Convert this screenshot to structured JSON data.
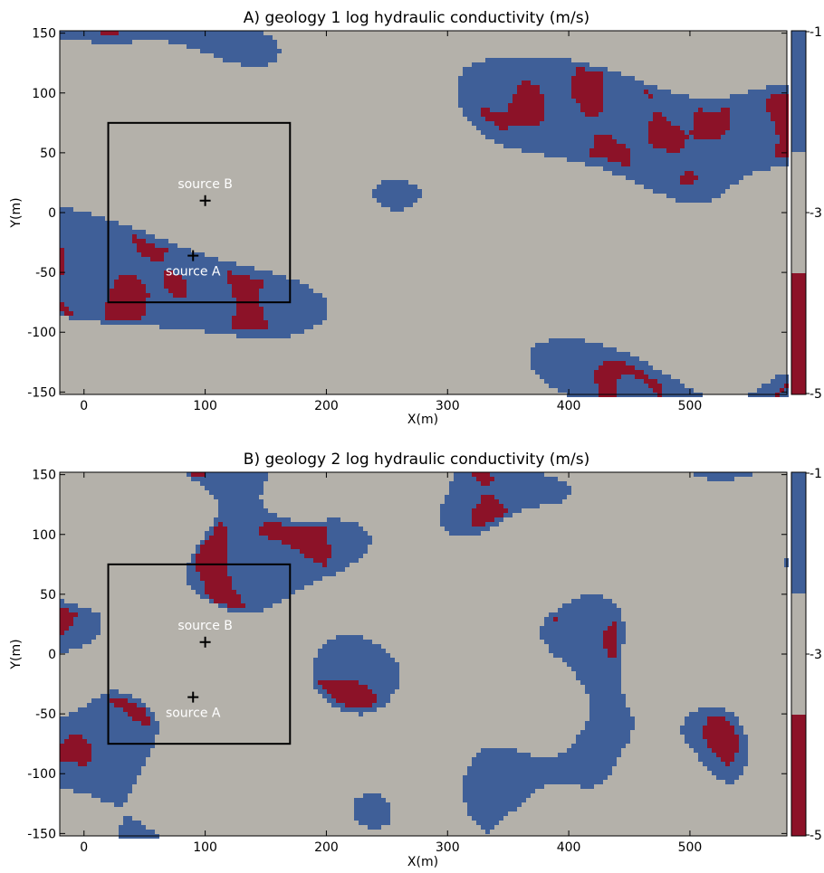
{
  "chart_data": [
    {
      "type": "heatmap",
      "title": "A) geology 1 log hydraulic conductivity (m/s)",
      "xlabel": "X(m)",
      "ylabel": "Y(m)",
      "xlim": [
        -20,
        580
      ],
      "ylim": [
        -152,
        152
      ],
      "xticks": [
        0,
        100,
        200,
        300,
        400,
        500
      ],
      "yticks": [
        -150,
        -100,
        -50,
        0,
        50,
        100,
        150
      ],
      "colorbar": {
        "ticks": [
          -1,
          -3,
          -5
        ],
        "tick_labels": [
          "-1",
          "-3",
          "-5"
        ],
        "levels": [
          {
            "value": -1,
            "color": "#3f5f98"
          },
          {
            "value": -3,
            "color": "#b4b1aa"
          },
          {
            "value": -5,
            "color": "#8c1228"
          }
        ]
      },
      "box": {
        "x0": 20,
        "x1": 170,
        "y0": -75,
        "y1": 75
      },
      "sources": [
        {
          "label": "source A",
          "x": 90,
          "y": -36
        },
        {
          "label": "source B",
          "x": 100,
          "y": 10
        }
      ],
      "seed": 11
    },
    {
      "type": "heatmap",
      "title": "B) geology 2 log hydraulic conductivity (m/s)",
      "xlabel": "X(m)",
      "ylabel": "Y(m)",
      "xlim": [
        -20,
        580
      ],
      "ylim": [
        -152,
        152
      ],
      "xticks": [
        0,
        100,
        200,
        300,
        400,
        500
      ],
      "yticks": [
        -150,
        -100,
        -50,
        0,
        50,
        100,
        150
      ],
      "colorbar": {
        "ticks": [
          -1,
          -3,
          -5
        ],
        "tick_labels": [
          "-1",
          "-3",
          "-5"
        ],
        "levels": [
          {
            "value": -1,
            "color": "#3f5f98"
          },
          {
            "value": -3,
            "color": "#b4b1aa"
          },
          {
            "value": -5,
            "color": "#8c1228"
          }
        ]
      },
      "box": {
        "x0": 20,
        "x1": 170,
        "y0": -75,
        "y1": 75
      },
      "sources": [
        {
          "label": "source A",
          "x": 90,
          "y": -36
        },
        {
          "label": "source B",
          "x": 100,
          "y": 10
        }
      ],
      "seed": 29
    }
  ]
}
